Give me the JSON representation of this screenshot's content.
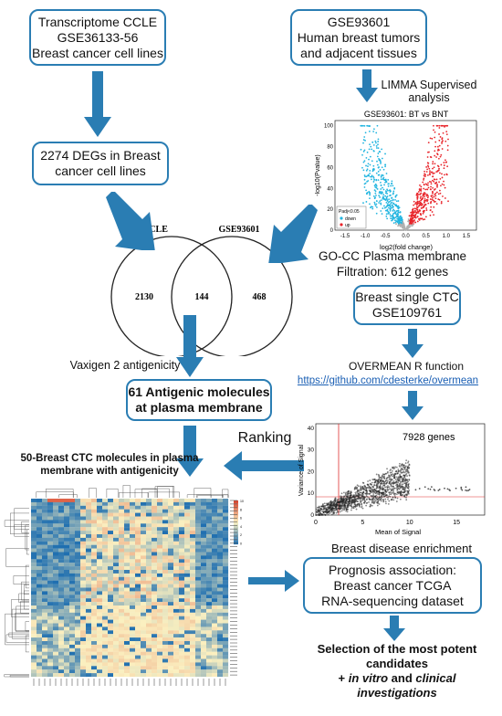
{
  "boxes": {
    "ccle": [
      "Transcriptome CCLE",
      "GSE36133-56",
      "Breast cancer cell lines"
    ],
    "gse93601": [
      "GSE93601",
      "Human breast tumors",
      "and adjacent tissues"
    ],
    "degs": [
      "2274 DEGs in Breast",
      "cancer cell lines"
    ],
    "ctc_single": [
      "Breast single CTC",
      "GSE109761"
    ],
    "antigenic": [
      "61 Antigenic molecules",
      "at plasma membrane"
    ],
    "prognosis": [
      "Prognosis association:",
      "Breast cancer TCGA",
      "RNA-sequencing dataset"
    ]
  },
  "labels": {
    "limma": [
      "LIMMA Supervised",
      "analysis"
    ],
    "go_cc": [
      "GO-CC Plasma membrane",
      "Filtration: 612 genes"
    ],
    "vaxigen": "Vaxigen 2 antigenicity",
    "overmean": "OVERMEAN R function",
    "overmean_url": "https://github.com/cdesterke/overmean",
    "ranking": "Ranking",
    "heatmap_title": [
      "50-Breast CTC molecules in plasma",
      "membrane with antigenicity"
    ],
    "breast_enrichment": "Breast disease enrichment",
    "final": [
      "Selection of the most potent",
      "candidates"
    ],
    "final_plus": "+ ",
    "final_in_vitro": "in vitro",
    "final_and": " and ",
    "final_clinical": "clinical",
    "final_invest": "investigations"
  },
  "venn": {
    "left_label": "CCLE",
    "right_label": "GSE93601",
    "left_only": "2130",
    "overlap": "144",
    "right_only": "468"
  },
  "volcano": {
    "title": "GSE93601: BT vs BNT",
    "xlabel": "log2(fold change)",
    "ylabel": "-log10(Pvalue)",
    "legend_title": "Padj<0.05",
    "legend_down": "down",
    "legend_up": "up",
    "x_ticks": [
      "-1.5",
      "-1.0",
      "-0.5",
      "0.0",
      "0.5",
      "1.0",
      "1.5"
    ],
    "y_ticks": [
      "0",
      "20",
      "40",
      "60",
      "80",
      "100"
    ],
    "colors": {
      "down": "#22b5e0",
      "up": "#e8242a",
      "ns": "#b0b0b0"
    }
  },
  "variance": {
    "annotation": "7928 genes",
    "xlabel": "Mean of Signal",
    "ylabel": "Variance of Signal",
    "x_ticks": [
      "0",
      "5",
      "10",
      "15"
    ],
    "y_ticks": [
      "0",
      "10",
      "20",
      "30",
      "40"
    ]
  },
  "heatmap": {
    "colors": {
      "low": "#1f6fb0",
      "mid": "#fbf0c0",
      "high": "#d8402a"
    },
    "legend_ticks": [
      "10",
      "8",
      "6",
      "4",
      "2",
      "0"
    ]
  }
}
